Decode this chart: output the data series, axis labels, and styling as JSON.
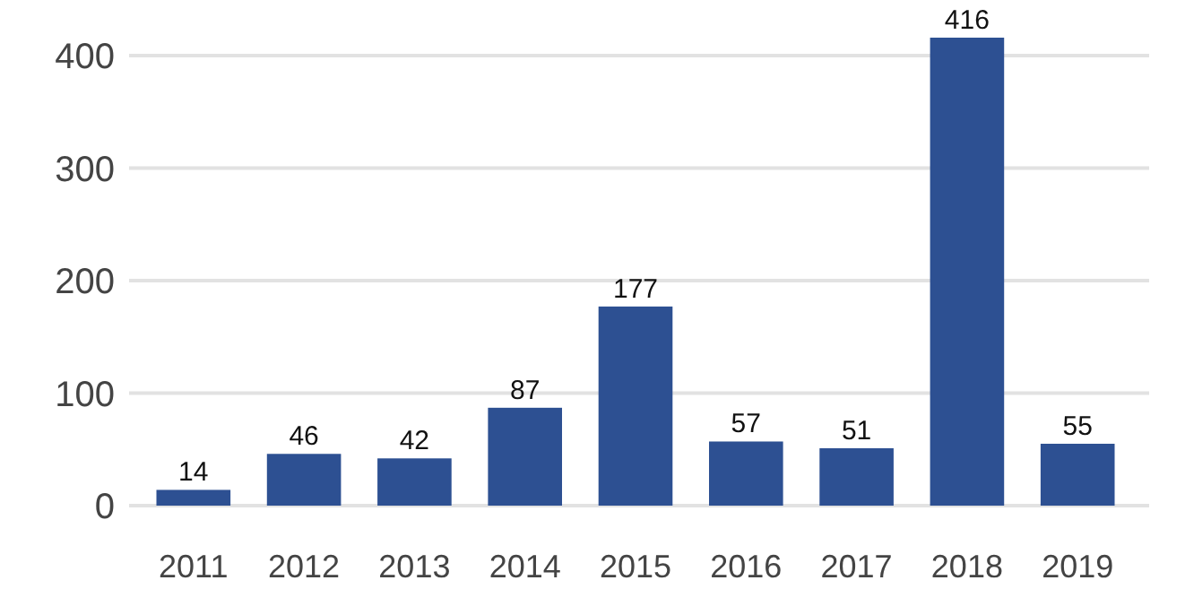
{
  "chart_data": {
    "type": "bar",
    "categories": [
      "2011",
      "2012",
      "2013",
      "2014",
      "2015",
      "2016",
      "2017",
      "2018",
      "2019"
    ],
    "values": [
      14,
      46,
      42,
      87,
      177,
      57,
      51,
      416,
      55
    ],
    "color": "#2d5092",
    "ylim": [
      0,
      416
    ],
    "yticks": [
      0,
      100,
      200,
      300,
      400
    ],
    "grid": "y",
    "data_labels": true
  }
}
